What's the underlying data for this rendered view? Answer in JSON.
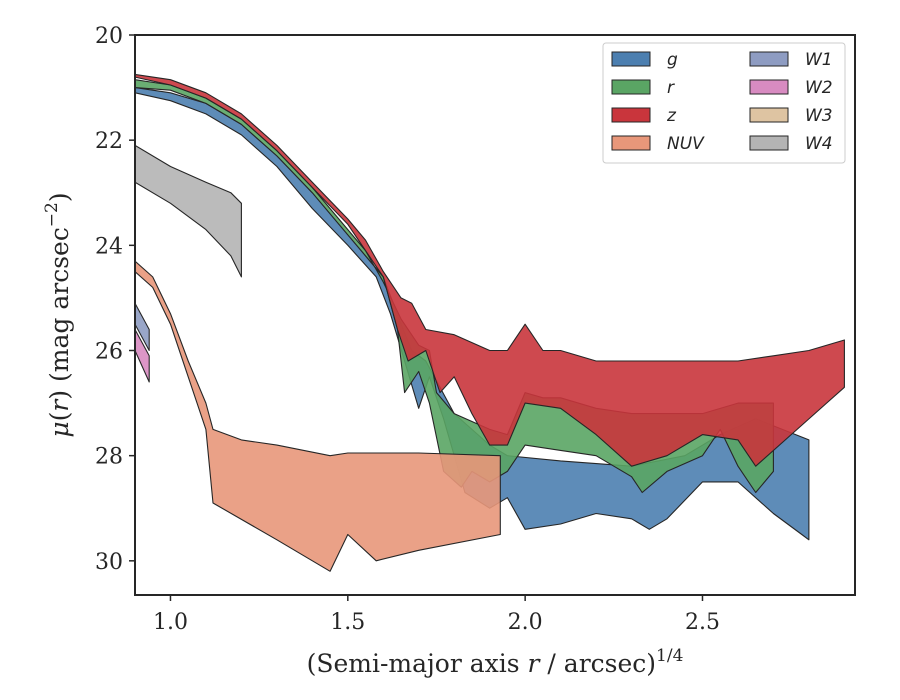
{
  "chart_data": {
    "type": "area",
    "title": "",
    "xlabel": "(Semi-major axis r / arcsec)",
    "xlabel_var": "r",
    "xlabel_parts": [
      "(Semi-major axis ",
      "r",
      " / arcsec)",
      "1/4"
    ],
    "ylabel": "μ(r) (mag arcsec⁻²)",
    "ylabel_parts": [
      "μ",
      "(",
      "r",
      ") (mag arcsec",
      "−2",
      ")"
    ],
    "xlim": [
      0.9,
      2.93
    ],
    "ylim": [
      20,
      30.65
    ],
    "y_inverted": true,
    "x_ticks": [
      1.0,
      1.5,
      2.0,
      2.5
    ],
    "x_tick_labels": [
      "1.0",
      "1.5",
      "2.0",
      "2.5"
    ],
    "y_ticks": [
      20,
      22,
      24,
      26,
      28,
      30
    ],
    "y_tick_labels": [
      "20",
      "22",
      "24",
      "26",
      "28",
      "30"
    ],
    "grid": false,
    "legend_position": "top-right",
    "legend_columns": 2,
    "series": [
      {
        "name": "g",
        "color": "#4c7fb0",
        "upper": [
          [
            0.9,
            21.0
          ],
          [
            1.0,
            21.1
          ],
          [
            1.1,
            21.3
          ],
          [
            1.2,
            21.7
          ],
          [
            1.3,
            22.3
          ],
          [
            1.4,
            23.0
          ],
          [
            1.5,
            23.8
          ],
          [
            1.6,
            24.6
          ],
          [
            1.65,
            25.5
          ],
          [
            1.68,
            26.0
          ],
          [
            1.72,
            26.2
          ],
          [
            1.8,
            27.2
          ],
          [
            1.9,
            27.8
          ],
          [
            1.95,
            28.0
          ],
          [
            2.1,
            28.1
          ],
          [
            2.3,
            28.2
          ],
          [
            2.45,
            28.0
          ],
          [
            2.55,
            27.6
          ],
          [
            2.65,
            27.3
          ],
          [
            2.8,
            27.7
          ]
        ],
        "lower": [
          [
            0.9,
            21.1
          ],
          [
            1.0,
            21.25
          ],
          [
            1.1,
            21.5
          ],
          [
            1.2,
            21.9
          ],
          [
            1.3,
            22.5
          ],
          [
            1.4,
            23.3
          ],
          [
            1.5,
            24.0
          ],
          [
            1.58,
            24.6
          ],
          [
            1.62,
            25.3
          ],
          [
            1.66,
            26.2
          ],
          [
            1.7,
            27.1
          ],
          [
            1.73,
            26.5
          ],
          [
            1.77,
            27.3
          ],
          [
            1.83,
            28.7
          ],
          [
            1.9,
            29.0
          ],
          [
            1.95,
            28.8
          ],
          [
            2.0,
            29.4
          ],
          [
            2.1,
            29.3
          ],
          [
            2.2,
            29.1
          ],
          [
            2.3,
            29.2
          ],
          [
            2.35,
            29.4
          ],
          [
            2.4,
            29.2
          ],
          [
            2.5,
            28.5
          ],
          [
            2.6,
            28.5
          ],
          [
            2.7,
            29.1
          ],
          [
            2.78,
            29.5
          ],
          [
            2.8,
            29.6
          ]
        ]
      },
      {
        "name": "r",
        "color": "#5aa564",
        "upper": [
          [
            0.9,
            20.85
          ],
          [
            1.0,
            20.95
          ],
          [
            1.1,
            21.2
          ],
          [
            1.2,
            21.6
          ],
          [
            1.3,
            22.2
          ],
          [
            1.4,
            22.9
          ],
          [
            1.5,
            23.7
          ],
          [
            1.55,
            24.1
          ],
          [
            1.6,
            24.7
          ],
          [
            1.65,
            25.4
          ],
          [
            1.7,
            25.9
          ],
          [
            1.73,
            26.0
          ],
          [
            1.75,
            26.8
          ],
          [
            1.8,
            27.2
          ],
          [
            1.9,
            27.5
          ],
          [
            1.95,
            27.6
          ],
          [
            2.0,
            26.8
          ],
          [
            2.05,
            26.9
          ],
          [
            2.1,
            26.9
          ],
          [
            2.2,
            27.1
          ],
          [
            2.3,
            27.2
          ],
          [
            2.4,
            27.2
          ],
          [
            2.5,
            27.2
          ],
          [
            2.6,
            27.0
          ],
          [
            2.7,
            27.0
          ]
        ],
        "lower": [
          [
            0.9,
            21.0
          ],
          [
            1.0,
            21.05
          ],
          [
            1.1,
            21.3
          ],
          [
            1.2,
            21.7
          ],
          [
            1.3,
            22.3
          ],
          [
            1.4,
            23.0
          ],
          [
            1.5,
            23.8
          ],
          [
            1.6,
            24.6
          ],
          [
            1.64,
            25.6
          ],
          [
            1.66,
            26.8
          ],
          [
            1.7,
            26.4
          ],
          [
            1.73,
            27.0
          ],
          [
            1.77,
            28.3
          ],
          [
            1.82,
            28.6
          ],
          [
            1.85,
            28.3
          ],
          [
            1.9,
            28.5
          ],
          [
            1.95,
            28.3
          ],
          [
            2.0,
            27.8
          ],
          [
            2.1,
            27.9
          ],
          [
            2.2,
            28.0
          ],
          [
            2.3,
            28.4
          ],
          [
            2.33,
            28.7
          ],
          [
            2.4,
            28.3
          ],
          [
            2.5,
            28.0
          ],
          [
            2.55,
            27.5
          ],
          [
            2.6,
            28.2
          ],
          [
            2.65,
            28.7
          ],
          [
            2.7,
            28.3
          ]
        ]
      },
      {
        "name": "z",
        "color": "#c9353c",
        "upper": [
          [
            0.9,
            20.75
          ],
          [
            1.0,
            20.85
          ],
          [
            1.1,
            21.1
          ],
          [
            1.2,
            21.5
          ],
          [
            1.3,
            22.1
          ],
          [
            1.4,
            22.8
          ],
          [
            1.5,
            23.5
          ],
          [
            1.55,
            23.9
          ],
          [
            1.6,
            24.5
          ],
          [
            1.65,
            25.0
          ],
          [
            1.68,
            25.1
          ],
          [
            1.72,
            25.6
          ],
          [
            1.8,
            25.7
          ],
          [
            1.9,
            26.0
          ],
          [
            1.95,
            26.0
          ],
          [
            2.0,
            25.5
          ],
          [
            2.05,
            26.0
          ],
          [
            2.1,
            26.0
          ],
          [
            2.2,
            26.2
          ],
          [
            2.3,
            26.2
          ],
          [
            2.4,
            26.2
          ],
          [
            2.5,
            26.2
          ],
          [
            2.6,
            26.2
          ],
          [
            2.7,
            26.1
          ],
          [
            2.8,
            26.0
          ],
          [
            2.9,
            25.8
          ]
        ],
        "lower": [
          [
            0.9,
            20.8
          ],
          [
            1.0,
            20.95
          ],
          [
            1.1,
            21.2
          ],
          [
            1.2,
            21.6
          ],
          [
            1.3,
            22.2
          ],
          [
            1.4,
            22.9
          ],
          [
            1.5,
            23.6
          ],
          [
            1.6,
            24.6
          ],
          [
            1.64,
            25.6
          ],
          [
            1.67,
            26.2
          ],
          [
            1.72,
            26.0
          ],
          [
            1.76,
            26.8
          ],
          [
            1.8,
            26.5
          ],
          [
            1.85,
            27.2
          ],
          [
            1.9,
            27.8
          ],
          [
            1.95,
            27.8
          ],
          [
            2.0,
            27.0
          ],
          [
            2.1,
            27.1
          ],
          [
            2.2,
            27.6
          ],
          [
            2.3,
            28.2
          ],
          [
            2.4,
            28.0
          ],
          [
            2.5,
            27.6
          ],
          [
            2.6,
            27.7
          ],
          [
            2.65,
            28.2
          ],
          [
            2.75,
            27.6
          ],
          [
            2.85,
            27.0
          ],
          [
            2.9,
            26.7
          ]
        ]
      },
      {
        "name": "NUV",
        "color": "#e8977a",
        "upper": [
          [
            0.9,
            24.3
          ],
          [
            0.95,
            24.6
          ],
          [
            1.0,
            25.3
          ],
          [
            1.05,
            26.2
          ],
          [
            1.1,
            27.0
          ],
          [
            1.12,
            27.5
          ],
          [
            1.2,
            27.7
          ],
          [
            1.3,
            27.8
          ],
          [
            1.45,
            28.0
          ],
          [
            1.5,
            27.95
          ],
          [
            1.7,
            27.95
          ],
          [
            1.93,
            28.0
          ]
        ],
        "lower": [
          [
            0.9,
            24.5
          ],
          [
            0.95,
            24.8
          ],
          [
            1.0,
            25.5
          ],
          [
            1.05,
            26.5
          ],
          [
            1.1,
            27.5
          ],
          [
            1.12,
            28.9
          ],
          [
            1.3,
            29.6
          ],
          [
            1.45,
            30.2
          ],
          [
            1.5,
            29.5
          ],
          [
            1.58,
            30.0
          ],
          [
            1.7,
            29.8
          ],
          [
            1.93,
            29.5
          ]
        ]
      },
      {
        "name": "W1",
        "color": "#8e9cc2",
        "upper": [
          [
            0.9,
            25.1
          ],
          [
            0.94,
            25.6
          ]
        ],
        "lower": [
          [
            0.9,
            25.5
          ],
          [
            0.94,
            26.0
          ]
        ]
      },
      {
        "name": "W2",
        "color": "#d88bc1",
        "upper": [
          [
            0.9,
            25.6
          ],
          [
            0.94,
            26.1
          ]
        ],
        "lower": [
          [
            0.9,
            26.0
          ],
          [
            0.94,
            26.6
          ]
        ]
      },
      {
        "name": "W3",
        "color": "#dec4a2",
        "upper": [],
        "lower": []
      },
      {
        "name": "W4",
        "color": "#b4b4b4",
        "upper": [
          [
            0.9,
            22.1
          ],
          [
            1.0,
            22.5
          ],
          [
            1.1,
            22.8
          ],
          [
            1.17,
            23.0
          ],
          [
            1.2,
            23.2
          ]
        ],
        "lower": [
          [
            0.9,
            22.8
          ],
          [
            1.0,
            23.2
          ],
          [
            1.1,
            23.7
          ],
          [
            1.17,
            24.2
          ],
          [
            1.2,
            24.6
          ]
        ]
      }
    ]
  }
}
